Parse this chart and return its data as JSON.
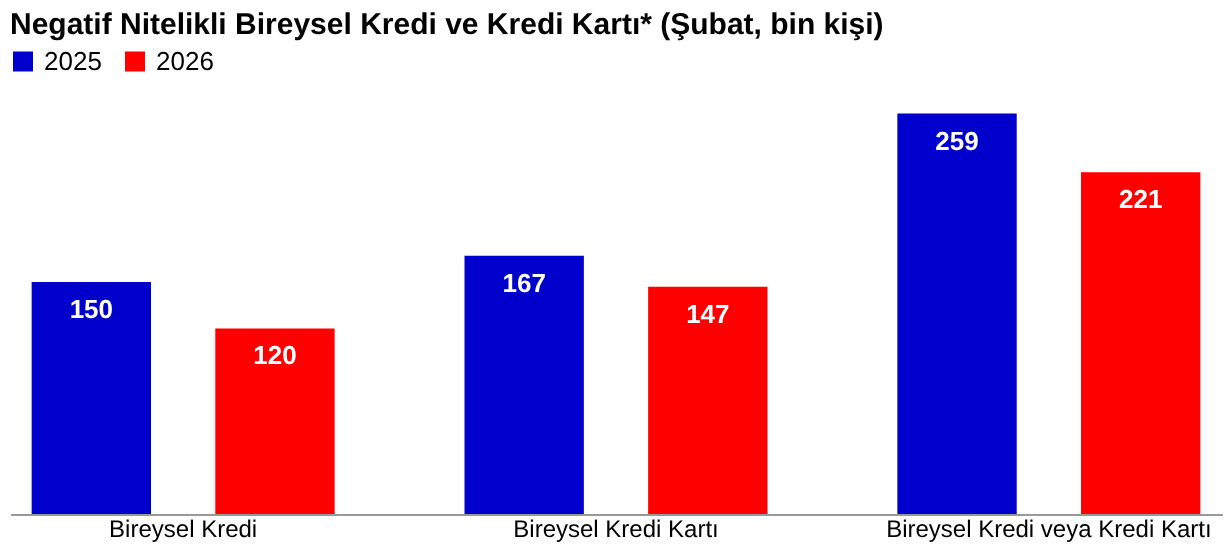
{
  "chart_data": {
    "type": "bar",
    "title": "Negatif Nitelikli Bireysel Kredi ve Kredi Kartı* (Şubat, bin kişi)",
    "categories": [
      "Bireysel Kredi",
      "Bireysel Kredi Kartı",
      "Bireysel Kredi veya Kredi Kartı"
    ],
    "series": [
      {
        "name": "2025",
        "color": "#0000cc",
        "values": [
          150,
          167,
          259
        ]
      },
      {
        "name": "2026",
        "color": "#ff0000",
        "values": [
          120,
          147,
          221
        ]
      }
    ],
    "data_labels": true,
    "legend": "top",
    "grid": false
  }
}
